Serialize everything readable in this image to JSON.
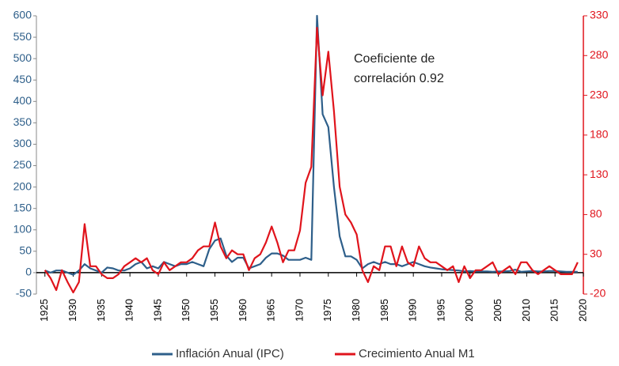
{
  "chart_data": {
    "type": "line",
    "x": [
      1925,
      1926,
      1927,
      1928,
      1929,
      1930,
      1931,
      1932,
      1933,
      1934,
      1935,
      1936,
      1937,
      1938,
      1939,
      1940,
      1941,
      1942,
      1943,
      1944,
      1945,
      1946,
      1947,
      1948,
      1949,
      1950,
      1951,
      1952,
      1953,
      1954,
      1955,
      1956,
      1957,
      1958,
      1959,
      1960,
      1961,
      1962,
      1963,
      1964,
      1965,
      1966,
      1967,
      1968,
      1969,
      1970,
      1971,
      1972,
      1973,
      1974,
      1975,
      1976,
      1977,
      1978,
      1979,
      1980,
      1981,
      1982,
      1983,
      1984,
      1985,
      1986,
      1987,
      1988,
      1989,
      1990,
      1991,
      1992,
      1993,
      1994,
      1995,
      1996,
      1997,
      1998,
      1999,
      2000,
      2001,
      2002,
      2003,
      2004,
      2005,
      2006,
      2007,
      2008,
      2009,
      2010,
      2011,
      2012,
      2013,
      2014,
      2015,
      2016,
      2017,
      2018,
      2019
    ],
    "series": [
      {
        "name": "Inflación Anual (IPC)",
        "color": "#2e5f8a",
        "axis": "y",
        "values": [
          5,
          0,
          5,
          5,
          0,
          -5,
          5,
          20,
          10,
          5,
          0,
          12,
          10,
          5,
          5,
          10,
          20,
          25,
          10,
          15,
          10,
          25,
          20,
          15,
          20,
          20,
          25,
          20,
          15,
          55,
          75,
          80,
          40,
          25,
          35,
          35,
          10,
          15,
          20,
          35,
          45,
          45,
          40,
          30,
          30,
          30,
          35,
          30,
          600,
          370,
          340,
          200,
          85,
          38,
          38,
          30,
          10,
          20,
          25,
          20,
          25,
          20,
          20,
          15,
          20,
          25,
          20,
          15,
          12,
          10,
          8,
          7,
          6,
          5,
          3,
          4,
          3,
          3,
          3,
          2,
          3,
          3,
          4,
          7,
          2,
          3,
          4,
          3,
          3,
          4,
          4,
          3,
          2,
          2,
          2
        ]
      },
      {
        "name": "Crecimiento Anual M1",
        "color": "#e0141c",
        "axis": "y2",
        "values": [
          10,
          0,
          -15,
          10,
          -5,
          -18,
          -5,
          68,
          15,
          15,
          5,
          0,
          0,
          5,
          15,
          20,
          25,
          20,
          25,
          10,
          5,
          20,
          10,
          15,
          20,
          20,
          25,
          35,
          40,
          40,
          70,
          40,
          25,
          35,
          30,
          30,
          10,
          25,
          30,
          45,
          65,
          45,
          20,
          35,
          35,
          60,
          120,
          140,
          315,
          230,
          285,
          210,
          115,
          80,
          70,
          55,
          10,
          -5,
          15,
          10,
          40,
          40,
          15,
          40,
          20,
          15,
          40,
          25,
          20,
          20,
          15,
          10,
          15,
          -5,
          15,
          0,
          10,
          10,
          15,
          20,
          5,
          10,
          15,
          5,
          20,
          20,
          10,
          5,
          10,
          15,
          10,
          5,
          5,
          5,
          20
        ]
      }
    ],
    "xlim": [
      1923.5,
      2020
    ],
    "xticks": [
      1925,
      1930,
      1935,
      1940,
      1945,
      1950,
      1955,
      1960,
      1965,
      1970,
      1975,
      1980,
      1985,
      1990,
      1995,
      2000,
      2005,
      2010,
      2015,
      2020
    ],
    "ylim": [
      -50,
      600
    ],
    "yticks": [
      -50,
      0,
      50,
      100,
      150,
      200,
      250,
      300,
      350,
      400,
      450,
      500,
      550,
      600
    ],
    "y2lim": [
      -20,
      330
    ],
    "y2ticks": [
      -20,
      30,
      80,
      130,
      180,
      230,
      280,
      330
    ],
    "annotation": [
      "Coeficiente de",
      "correlación 0.92"
    ],
    "legend": "bottom"
  }
}
